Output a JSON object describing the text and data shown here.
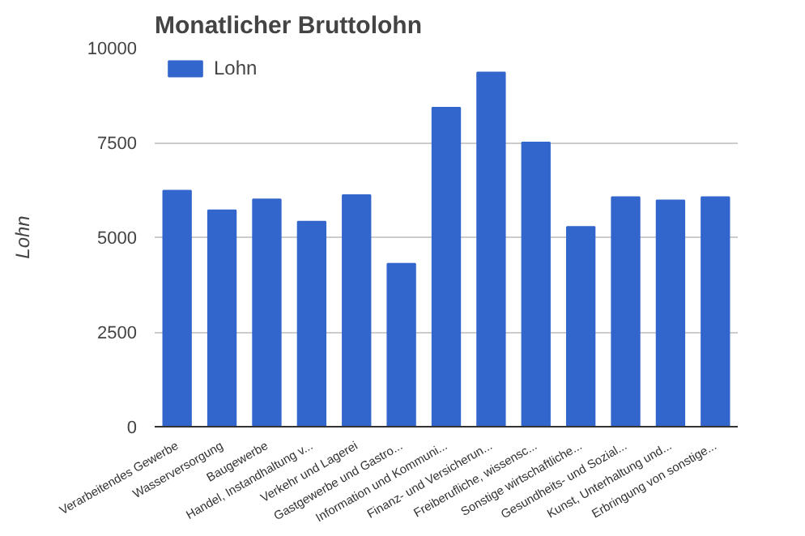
{
  "chart_data": {
    "type": "bar",
    "title": "Monatlicher Bruttolohn",
    "ylabel": "Lohn",
    "categories": [
      "Verarbeitendes Gewerbe",
      "Wasserversorgung",
      "Baugewerbe",
      "Handel, Instandhaltung v...",
      "Verkehr und Lagerei",
      "Gastgewerbe und Gastro...",
      "Information und Kommuni...",
      "Finanz- und Versicherun...",
      "Freiberufliche, wissensc...",
      "Sonstige wirtschaftliche...",
      "Gesundheits- und Sozial...",
      "Kunst, Unterhaltung und...",
      "Erbringung von sonstige..."
    ],
    "series": [
      {
        "name": "Lohn",
        "color": "#3366cc",
        "values": [
          6230,
          5710,
          6000,
          5410,
          6110,
          4300,
          8420,
          9350,
          7500,
          5270,
          6060,
          5970,
          6060
        ]
      }
    ],
    "ylim": [
      0,
      10000
    ],
    "yticks": [
      0,
      2500,
      5000,
      7500,
      10000
    ],
    "grid": "y",
    "legend": "top left"
  }
}
